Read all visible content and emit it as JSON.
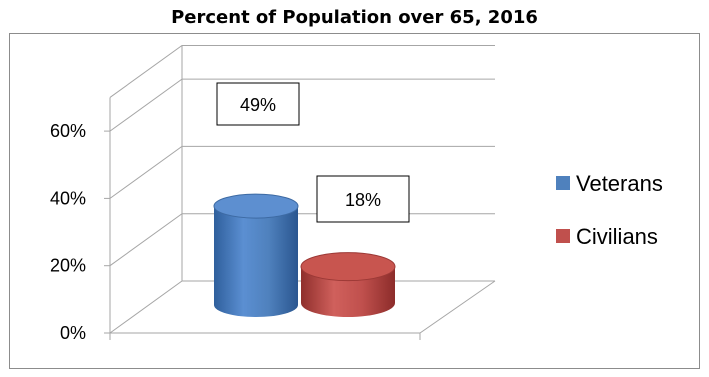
{
  "chart_data": {
    "type": "bar",
    "style": "3d-cylinder",
    "title": "Percent of Population over 65, 2016",
    "categories": [
      "Veterans",
      "Civilians"
    ],
    "values": [
      49,
      18
    ],
    "data_labels": [
      "49%",
      "18%"
    ],
    "series": [
      {
        "name": "Veterans",
        "value": 49,
        "color": "#4f81bd"
      },
      {
        "name": "Civilians",
        "value": 18,
        "color": "#c0504d"
      }
    ],
    "yticks": [
      "0%",
      "20%",
      "40%",
      "60%"
    ],
    "ytick_values": [
      0,
      20,
      40,
      60
    ],
    "ylim": [
      0,
      70
    ],
    "grid": true,
    "legend_position": "right",
    "xlabel": "",
    "ylabel": ""
  }
}
